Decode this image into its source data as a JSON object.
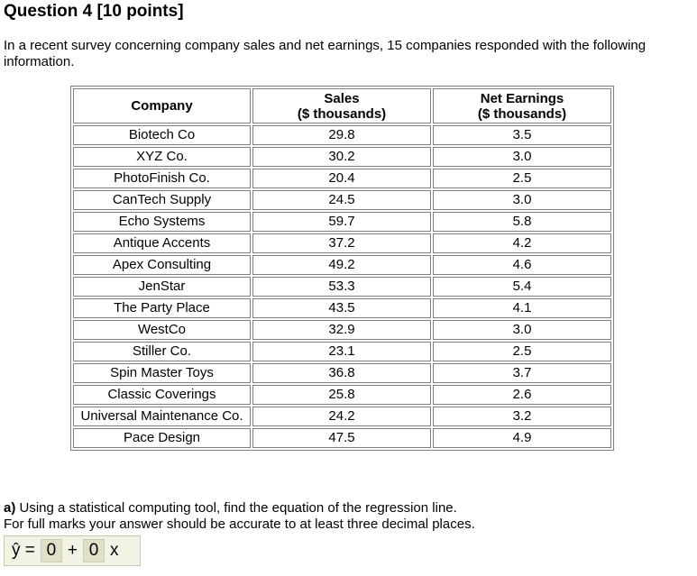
{
  "question": {
    "title": "Question 4 [10 points]",
    "intro": "In a recent survey concerning company sales and net earnings, 15 companies responded with the following information."
  },
  "table": {
    "headers": {
      "company": "Company",
      "sales_line1": "Sales",
      "sales_line2": "($ thousands)",
      "earnings_line1": "Net Earnings",
      "earnings_line2": "($ thousands)"
    },
    "rows": [
      {
        "company": "Biotech Co",
        "sales": "29.8",
        "earnings": "3.5"
      },
      {
        "company": "XYZ Co.",
        "sales": "30.2",
        "earnings": "3.0"
      },
      {
        "company": "PhotoFinish Co.",
        "sales": "20.4",
        "earnings": "2.5"
      },
      {
        "company": "CanTech Supply",
        "sales": "24.5",
        "earnings": "3.0"
      },
      {
        "company": "Echo Systems",
        "sales": "59.7",
        "earnings": "5.8"
      },
      {
        "company": "Antique Accents",
        "sales": "37.2",
        "earnings": "4.2"
      },
      {
        "company": "Apex Consulting",
        "sales": "49.2",
        "earnings": "4.6"
      },
      {
        "company": "JenStar",
        "sales": "53.3",
        "earnings": "5.4"
      },
      {
        "company": "The Party Place",
        "sales": "43.5",
        "earnings": "4.1"
      },
      {
        "company": "WestCo",
        "sales": "32.9",
        "earnings": "3.0"
      },
      {
        "company": "Stiller Co.",
        "sales": "23.1",
        "earnings": "2.5"
      },
      {
        "company": "Spin Master Toys",
        "sales": "36.8",
        "earnings": "3.7"
      },
      {
        "company": "Classic Coverings",
        "sales": "25.8",
        "earnings": "2.6"
      },
      {
        "company": "Universal Maintenance Co.",
        "sales": "24.2",
        "earnings": "3.2"
      },
      {
        "company": "Pace Design",
        "sales": "47.5",
        "earnings": "4.9"
      }
    ]
  },
  "part_a": {
    "label": "a)",
    "text": " Using a statistical computing tool, find the equation of the regression line.",
    "note": "For full marks your answer should be accurate to at least three decimal places."
  },
  "answer": {
    "yhat": "ŷ =",
    "intercept_value": "0",
    "plus": "+",
    "slope_value": "0",
    "x": "x"
  }
}
